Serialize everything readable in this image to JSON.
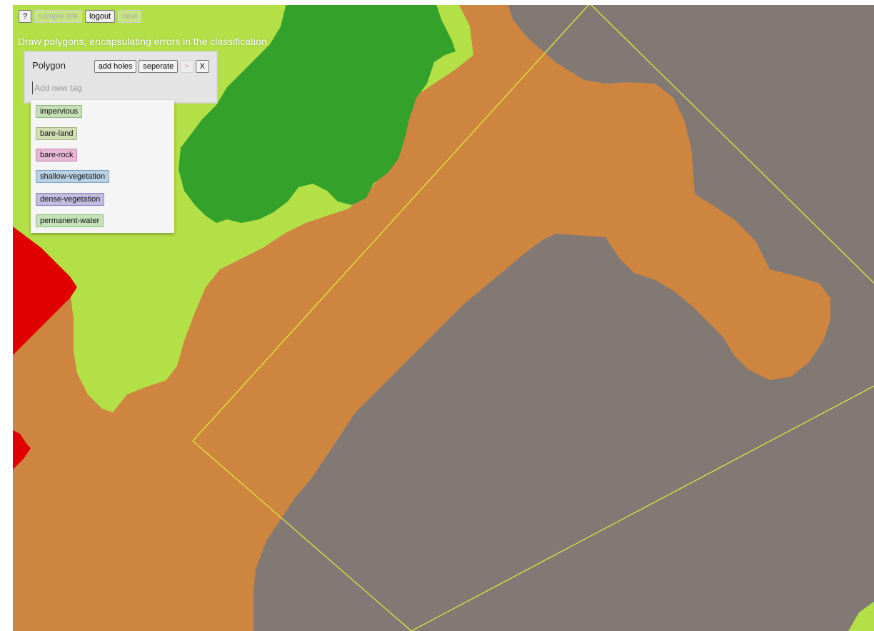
{
  "topbar": {
    "help_label": "?",
    "sample_link_label": "sample link",
    "logout_label": "logout",
    "next_label": "next"
  },
  "instruction": "Draw polygons, encapsulating errors in the classification",
  "panel": {
    "title": "Polygon",
    "add_holes_label": "add holes",
    "seperate_label": "seperate",
    "arrow_label": ">",
    "close_label": "X",
    "tag_placeholder": "Add new tag",
    "tag_value": ""
  },
  "tags": [
    {
      "label": "impervious",
      "bg": "#c6dfb6",
      "border": "#8fb77a"
    },
    {
      "label": "bare-land",
      "bg": "#d2dfb4",
      "border": "#9fb376"
    },
    {
      "label": "bare-rock",
      "bg": "#e6b8d6",
      "border": "#c37fad"
    },
    {
      "label": "shallow-vegetation",
      "bg": "#b9d0e3",
      "border": "#7ea2c2"
    },
    {
      "label": "dense-vegetation",
      "bg": "#c2bde0",
      "border": "#8c84c1"
    },
    {
      "label": "permanent-water",
      "bg": "#c4e3b9",
      "border": "#87bf77"
    }
  ],
  "map_colors": {
    "background": "#837974",
    "orange": "#cd853f",
    "light_green": "#b3e046",
    "dark_green": "#34a12b",
    "red": "#e00000",
    "selection_outline": "#e6ee3a"
  }
}
